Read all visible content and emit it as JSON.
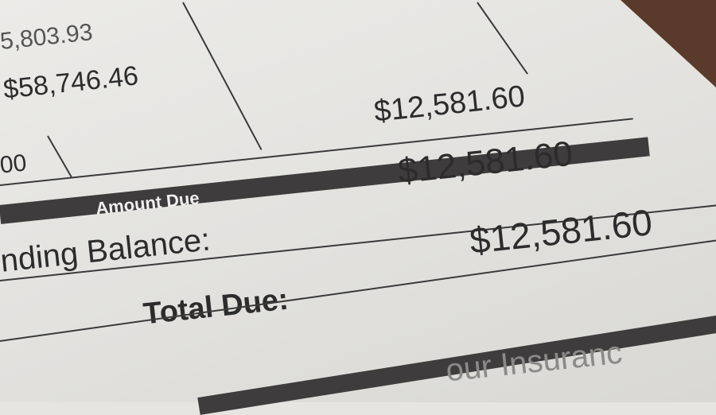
{
  "bill": {
    "top_amount_partial": "5,803.93",
    "subtotal_amount": "$58,746.46",
    "left_partial": "00",
    "column_amount": "$12,581.60",
    "amount_due_header": "Amount Due",
    "outstanding_balance_label": "nding Balance:",
    "outstanding_balance_value": "$12,581.60",
    "total_due_label": "Total Due:",
    "total_due_value": "$12,581.60",
    "footer_partial": "our Insuranc"
  },
  "colors": {
    "paper": "#e6e5e2",
    "band": "#3e3c3c",
    "ink": "#2c2c2c",
    "table_surface": "#5a3a2a"
  }
}
